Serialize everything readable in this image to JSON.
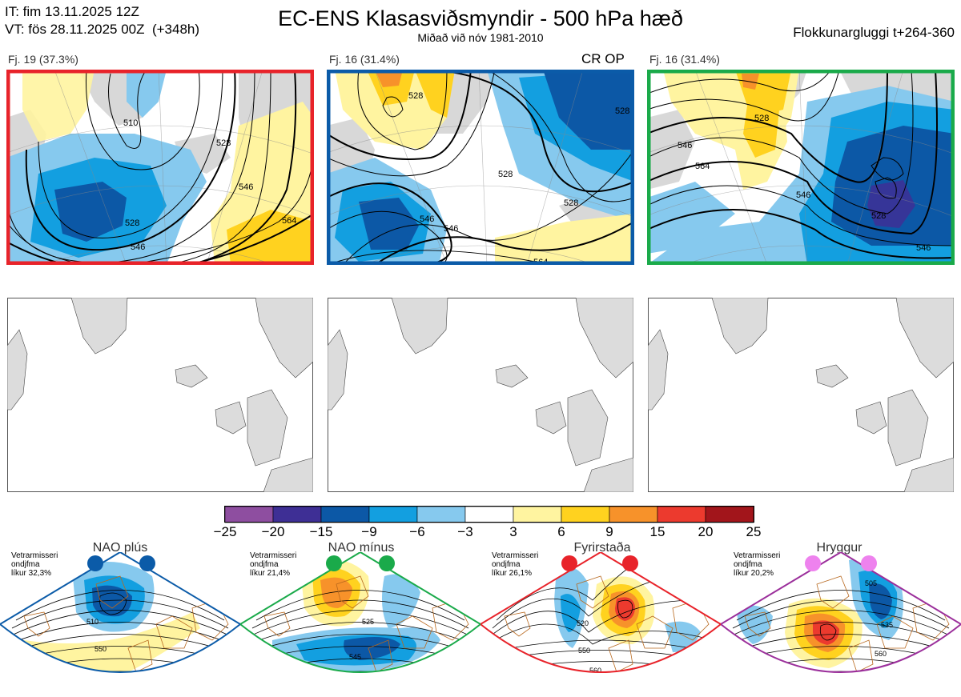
{
  "header": {
    "line_it": "IT: fim 13.11.2025 12Z",
    "line_vt": "VT: fös 28.11.2025 00Z  (+348h)",
    "title": "EC-ENS Klasasviðsmyndir - 500 hPa hæð",
    "subtitle": "Miðað við nóv 1981-2010",
    "window": "Flokkunargluggi t+264-360"
  },
  "clusters": [
    {
      "label": "Fj. 19 (37.3%)",
      "frame_color": "#e8232a",
      "contour_labels": [
        "510",
        "528",
        "528",
        "546",
        "528",
        "546",
        "564",
        "546"
      ]
    },
    {
      "label": "Fj. 16 (31.4%)",
      "frame_color": "#0b5ba8",
      "marker": "CR OP",
      "contour_labels": [
        "528",
        "510",
        "528",
        "528",
        "546",
        "546",
        "528",
        "564"
      ]
    },
    {
      "label": "Fj. 16 (31.4%)",
      "frame_color": "#1aaa4a",
      "contour_labels": [
        "528",
        "546",
        "564",
        "546",
        "528",
        "546"
      ]
    }
  ],
  "colorbar": {
    "ticks": [
      "−25",
      "−20",
      "−15",
      "−9",
      "−6",
      "−3",
      "3",
      "6",
      "9",
      "15",
      "20",
      "25"
    ],
    "colors": [
      "#8e4ea0",
      "#3e2f95",
      "#0c58a6",
      "#139fe0",
      "#86c9ee",
      "#ffffff",
      "#fff4a0",
      "#ffd21f",
      "#f7922a",
      "#ec3a2e",
      "#a2151b"
    ]
  },
  "regimes": [
    {
      "name": "NAO plús",
      "note": "Vetrarmisseri\nondjfma\nlíkur 32,3%",
      "color": "#0b5ba8",
      "labels": [
        "510",
        "550"
      ]
    },
    {
      "name": "NAO mínus",
      "note": "Vetrarmisseri\nondjfma\nlíkur 21,4%",
      "color": "#1aaa4a",
      "labels": [
        "525",
        "545",
        "565"
      ]
    },
    {
      "name": "Fyrirstaða",
      "note": "Vetrarmisseri\nondjfma\nlíkur 26,1%",
      "color": "#e8232a",
      "labels": [
        "520",
        "550",
        "560"
      ]
    },
    {
      "name": "Hryggur",
      "note": "Vetrarmisseri\nondjfma\nlíkur 20,2%",
      "color": "#9b2f9b",
      "labels": [
        "505",
        "535",
        "560"
      ]
    }
  ]
}
